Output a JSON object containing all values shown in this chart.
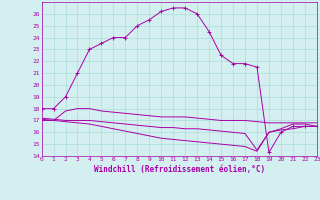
{
  "xlabel": "Windchill (Refroidissement éolien,°C)",
  "ylabel": "",
  "xlim": [
    0,
    23
  ],
  "ylim": [
    14,
    27
  ],
  "yticks": [
    14,
    15,
    16,
    17,
    18,
    19,
    20,
    21,
    22,
    23,
    24,
    25,
    26
  ],
  "xticks": [
    0,
    1,
    2,
    3,
    4,
    5,
    6,
    7,
    8,
    9,
    10,
    11,
    12,
    13,
    14,
    15,
    16,
    17,
    18,
    19,
    20,
    21,
    22,
    23
  ],
  "bg_color": "#d4efef",
  "line_color": "#aa00aa",
  "grid_color": "#aadddd",
  "curve1_x": [
    0,
    1,
    2,
    3,
    4,
    5,
    6,
    7,
    8,
    9,
    10,
    11,
    12,
    13,
    14,
    15,
    16,
    17,
    18,
    19,
    20,
    21,
    22,
    23
  ],
  "curve1_y": [
    18,
    18,
    19,
    21,
    23,
    23.5,
    24,
    24,
    25,
    25.5,
    26.2,
    26.5,
    26.5,
    26,
    24.5,
    22.5,
    21.8,
    21.8,
    21.5,
    14.3,
    16.0,
    16.5,
    16.5,
    16.5
  ],
  "curve2_x": [
    0,
    1,
    2,
    3,
    4,
    5,
    6,
    7,
    8,
    9,
    10,
    11,
    12,
    13,
    14,
    15,
    16,
    17,
    18,
    19,
    20,
    21,
    22,
    23
  ],
  "curve2_y": [
    17.0,
    17.0,
    17.8,
    18.0,
    18.0,
    17.8,
    17.7,
    17.6,
    17.5,
    17.4,
    17.3,
    17.3,
    17.3,
    17.2,
    17.1,
    17.0,
    17.0,
    17.0,
    16.9,
    16.8,
    16.8,
    16.8,
    16.8,
    16.8
  ],
  "curve3_x": [
    0,
    1,
    2,
    3,
    4,
    5,
    6,
    7,
    8,
    9,
    10,
    11,
    12,
    13,
    14,
    15,
    16,
    17,
    18,
    19,
    20,
    21,
    22,
    23
  ],
  "curve3_y": [
    17.2,
    17.1,
    17.0,
    17.0,
    17.0,
    16.9,
    16.8,
    16.7,
    16.6,
    16.5,
    16.4,
    16.4,
    16.3,
    16.3,
    16.2,
    16.1,
    16.0,
    15.9,
    14.5,
    16.0,
    16.3,
    16.7,
    16.7,
    16.5
  ],
  "curve4_x": [
    0,
    1,
    2,
    3,
    4,
    5,
    6,
    7,
    8,
    9,
    10,
    11,
    12,
    13,
    14,
    15,
    16,
    17,
    18,
    19,
    20,
    21,
    22,
    23
  ],
  "curve4_y": [
    17.1,
    17.0,
    16.9,
    16.8,
    16.7,
    16.5,
    16.3,
    16.1,
    15.9,
    15.7,
    15.5,
    15.4,
    15.3,
    15.2,
    15.1,
    15.0,
    14.9,
    14.8,
    14.4,
    16.0,
    16.2,
    16.3,
    16.5,
    16.5
  ]
}
